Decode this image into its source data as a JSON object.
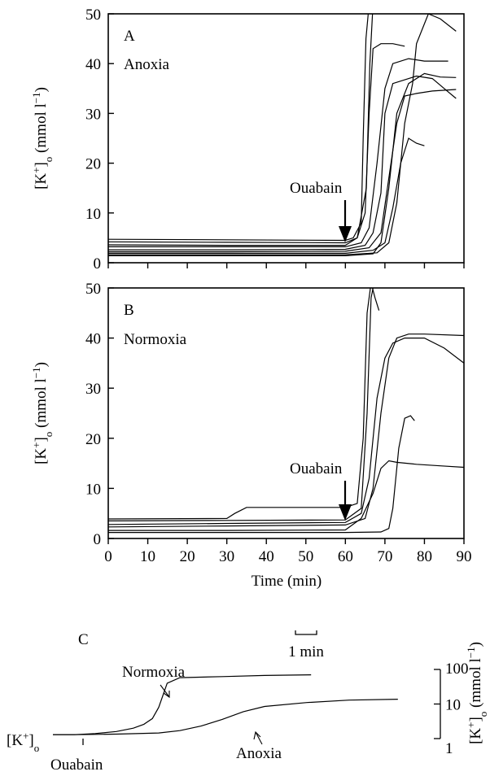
{
  "chart_data": [
    {
      "panel": "A",
      "type": "line",
      "label": "A",
      "condition": "Anoxia",
      "annotation": "Ouabain",
      "annotation_x": 60,
      "xlabel": "",
      "ylabel": "[K+]o (mmol l−1)",
      "ylabel_parts": {
        "a": "[K",
        "b": "+",
        "c": "]",
        "d": "o",
        "e": " (mmol l",
        "f": "−1",
        "g": ")"
      },
      "xlim": [
        0,
        90
      ],
      "ylim": [
        0,
        50
      ],
      "x_ticks": [
        0,
        10,
        20,
        30,
        40,
        50,
        60,
        70,
        80,
        90
      ],
      "y_ticks": [
        0,
        10,
        20,
        30,
        40,
        50
      ],
      "show_x_tick_labels": false,
      "series": [
        {
          "x": [
            0,
            30,
            60,
            62,
            64,
            64.5,
            65.2,
            66
          ],
          "y": [
            4.7,
            4.6,
            4.5,
            5,
            8,
            25,
            45,
            52
          ]
        },
        {
          "x": [
            0,
            30,
            60,
            63,
            65.3,
            66.2,
            67
          ],
          "y": [
            4.2,
            4.1,
            4.0,
            5,
            15,
            40,
            52
          ]
        },
        {
          "x": [
            0,
            30,
            60,
            63,
            65,
            66,
            67,
            69,
            72,
            75
          ],
          "y": [
            3.6,
            3.5,
            3.5,
            5,
            10,
            30,
            43,
            44,
            44,
            43.5
          ]
        },
        {
          "x": [
            0,
            30,
            60,
            64,
            66,
            68,
            70,
            72,
            76,
            80,
            86
          ],
          "y": [
            3.2,
            3.2,
            3.2,
            4,
            7,
            20,
            35,
            40,
            41,
            40.5,
            40.5
          ]
        },
        {
          "x": [
            0,
            30,
            60,
            65,
            67,
            69,
            70,
            72,
            78,
            82,
            85,
            88
          ],
          "y": [
            2.6,
            2.6,
            2.7,
            3.5,
            6,
            14,
            30,
            36,
            37.5,
            37,
            35,
            33
          ]
        },
        {
          "x": [
            0,
            30,
            60,
            66,
            69,
            71,
            73,
            75,
            78,
            82,
            88
          ],
          "y": [
            2.2,
            2.2,
            2.3,
            3,
            6,
            17,
            28,
            33.5,
            34,
            34.5,
            34.8
          ]
        },
        {
          "x": [
            0,
            30,
            60,
            67,
            70,
            72,
            74,
            76,
            78,
            80
          ],
          "y": [
            1.9,
            1.9,
            1.9,
            2.5,
            4,
            11,
            20,
            25,
            24,
            23.5
          ]
        },
        {
          "x": [
            0,
            30,
            60,
            68,
            71,
            73,
            75,
            77,
            78,
            81,
            84,
            88
          ],
          "y": [
            1.6,
            1.6,
            1.6,
            2,
            4,
            12,
            28,
            36,
            44,
            50,
            49,
            46.5
          ]
        },
        {
          "x": [
            0,
            30,
            60,
            67,
            69,
            71,
            73,
            76,
            80,
            84,
            88
          ],
          "y": [
            1.4,
            1.4,
            1.4,
            1.8,
            4,
            15,
            30,
            36,
            38,
            37.3,
            37.2
          ]
        }
      ]
    },
    {
      "panel": "B",
      "type": "line",
      "label": "B",
      "condition": "Normoxia",
      "annotation": "Ouabain",
      "annotation_x": 60,
      "xlabel": "Time (min)",
      "ylabel": "[K+]o (mmol l−1)",
      "ylabel_parts": {
        "a": "[K",
        "b": "+",
        "c": "]",
        "d": "o",
        "e": " (mmol l",
        "f": "−1",
        "g": ")"
      },
      "xlim": [
        0,
        90
      ],
      "ylim": [
        0,
        50
      ],
      "x_ticks": [
        0,
        10,
        20,
        30,
        40,
        50,
        60,
        70,
        80,
        90
      ],
      "y_ticks": [
        0,
        10,
        20,
        30,
        40,
        50
      ],
      "show_x_tick_labels": true,
      "series": [
        {
          "x": [
            0,
            30,
            32,
            35,
            40,
            60,
            63,
            64.5,
            65.5,
            66.5,
            67.5,
            68.5
          ],
          "y": [
            3.9,
            4.0,
            5,
            6.2,
            6.2,
            6.2,
            7,
            20,
            45,
            51,
            48,
            45.5
          ]
        },
        {
          "x": [
            0,
            30,
            60,
            64,
            65.5,
            66.5,
            67.5
          ],
          "y": [
            3.5,
            3.6,
            3.7,
            6,
            25,
            48,
            52
          ]
        },
        {
          "x": [
            0,
            30,
            60,
            64,
            66,
            68,
            70,
            72,
            75,
            80,
            85,
            90
          ],
          "y": [
            2.8,
            3.0,
            3.2,
            5,
            12,
            28,
            36,
            39,
            40,
            40,
            38,
            35
          ]
        },
        {
          "x": [
            0,
            30,
            60,
            65,
            67,
            69,
            71,
            73,
            76,
            80,
            90
          ],
          "y": [
            2.3,
            2.5,
            2.7,
            4,
            10,
            25,
            36,
            40,
            40.8,
            40.8,
            40.5
          ]
        },
        {
          "x": [
            0,
            30,
            60,
            64,
            67,
            69,
            71,
            73,
            78,
            84,
            90
          ],
          "y": [
            1.6,
            1.6,
            1.7,
            4,
            9,
            14,
            15.5,
            15.2,
            14.8,
            14.5,
            14.2
          ]
        },
        {
          "x": [
            0,
            30,
            60,
            69,
            71,
            72,
            73.5,
            75,
            76.5,
            77.5
          ],
          "y": [
            1.2,
            1.2,
            1.2,
            1.3,
            2,
            6,
            18,
            24,
            24.5,
            23.5
          ]
        }
      ]
    },
    {
      "panel": "C",
      "type": "line",
      "label": "C",
      "y_variable": "[K+]o",
      "y_variable_parts": {
        "a": "[K",
        "b": "+",
        "c": "]",
        "d": "o"
      },
      "y_scale": "log",
      "ylim": [
        1,
        100
      ],
      "y_ticks": [
        1,
        10,
        100
      ],
      "right_ylabel": "[K+]o (mmol l−1)",
      "scale_bar_label": "1 min",
      "annotations": {
        "ouabain": "Ouabain",
        "normoxia": "Normoxia",
        "anoxia": "Anoxia"
      },
      "series": [
        {
          "name": "Normoxia",
          "x_min": [
            0,
            1,
            2,
            3,
            3.8,
            4.3,
            4.7,
            5.0,
            5.4,
            6,
            8,
            10,
            12.2
          ],
          "y": [
            1.3,
            1.3,
            1.4,
            1.6,
            2.0,
            2.6,
            3.8,
            8,
            40,
            58,
            62,
            67,
            70
          ]
        },
        {
          "name": "Anoxia",
          "x_min": [
            0,
            1,
            3,
            5,
            6,
            7,
            8,
            9,
            10,
            12,
            14,
            16.3
          ],
          "y": [
            1.3,
            1.3,
            1.35,
            1.45,
            1.7,
            2.3,
            3.6,
            6,
            8.5,
            11,
            13,
            13.8
          ]
        }
      ]
    }
  ]
}
